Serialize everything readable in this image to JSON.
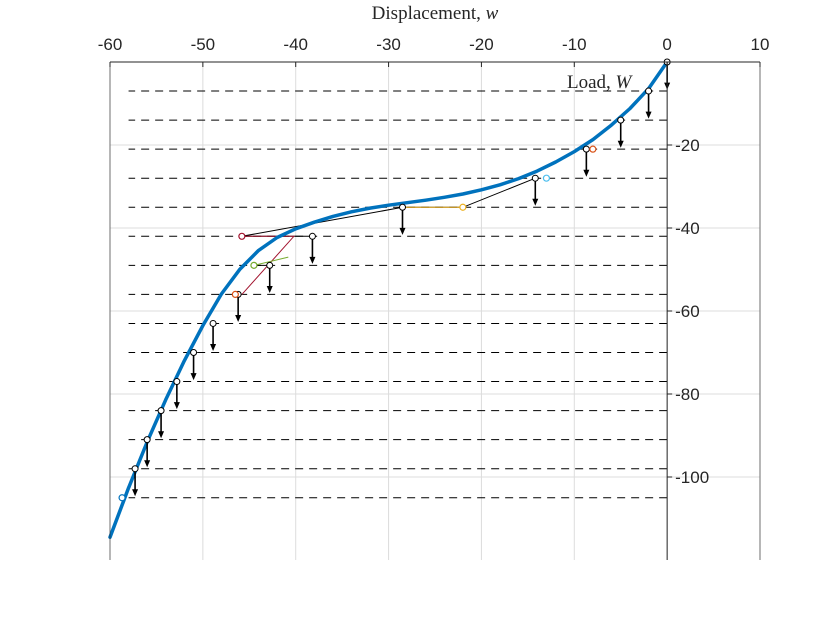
{
  "chart_data": {
    "type": "line",
    "title": "",
    "xlabel": "Displacement,",
    "xlabel_var": "w",
    "ylabel": "Load,",
    "ylabel_var": "W",
    "xlim": [
      -60,
      10
    ],
    "ylim": [
      -120,
      0
    ],
    "x_ticks": [
      -60,
      -50,
      -40,
      -30,
      -20,
      -10,
      0,
      10
    ],
    "y_ticks": [
      -20,
      -40,
      -60,
      -80,
      -100
    ],
    "x_axis_location": "top",
    "y_axis_location": "origin",
    "grid": true,
    "equilibrium_curve": {
      "color": "#0072BD",
      "x": [
        -60,
        -58,
        -56,
        -54,
        -52,
        -50,
        -48,
        -46,
        -44,
        -42,
        -40,
        -38,
        -36,
        -34,
        -32,
        -30,
        -28,
        -26,
        -24,
        -22,
        -20,
        -18,
        -16,
        -14,
        -12,
        -10,
        -8,
        -6,
        -4,
        -2,
        0
      ],
      "y": [
        -114.5,
        -102.6,
        -91.6,
        -81.4,
        -72.0,
        -63.5,
        -55.9,
        -49.9,
        -45.4,
        -42.3,
        -40.2,
        -38.6,
        -37.2,
        -36.1,
        -35.2,
        -34.5,
        -33.9,
        -33.3,
        -32.6,
        -31.8,
        -30.8,
        -29.6,
        -28.1,
        -26.3,
        -24.1,
        -21.6,
        -18.7,
        -15.2,
        -11.2,
        -6.4,
        0
      ]
    },
    "load_levels": [
      -7,
      -14,
      -21,
      -28,
      -35,
      -42,
      -49,
      -56,
      -63,
      -70,
      -77,
      -84,
      -91,
      -98,
      -105
    ],
    "equilibrium_points": [
      {
        "x": -2.0,
        "y": -7
      },
      {
        "x": -5.0,
        "y": -14
      },
      {
        "x": -8.7,
        "y": -21
      },
      {
        "x": -14.2,
        "y": -28
      },
      {
        "x": -28.5,
        "y": -35
      },
      {
        "x": -38.2,
        "y": -42
      },
      {
        "x": -42.8,
        "y": -49
      },
      {
        "x": -46.2,
        "y": -56
      },
      {
        "x": -48.9,
        "y": -63
      },
      {
        "x": -51.0,
        "y": -70
      },
      {
        "x": -52.8,
        "y": -77
      },
      {
        "x": -54.5,
        "y": -84
      },
      {
        "x": -56.0,
        "y": -91
      },
      {
        "x": -57.3,
        "y": -98
      }
    ],
    "predictor_points": [
      {
        "x": -8.0,
        "y": -21,
        "color": "#D95319"
      },
      {
        "x": -13.0,
        "y": -28,
        "color": "#4DBEEE"
      },
      {
        "x": -22.0,
        "y": -35,
        "color": "#EDB120"
      },
      {
        "x": -45.8,
        "y": -42,
        "color": "#A2142F"
      },
      {
        "x": -44.5,
        "y": -49,
        "color": "#77AC30"
      },
      {
        "x": -46.5,
        "y": -56,
        "color": "#D95319"
      },
      {
        "x": -58.7,
        "y": -105,
        "color": "#0072BD"
      }
    ],
    "predictor_paths": [
      {
        "color": "#000000",
        "points": [
          [
            -14.2,
            -28
          ],
          [
            -22.0,
            -35
          ],
          [
            -28.5,
            -35
          ]
        ]
      },
      {
        "color": "#EDB120",
        "points": [
          [
            -22.0,
            -35
          ],
          [
            -28.5,
            -35
          ]
        ]
      },
      {
        "color": "#000000",
        "points": [
          [
            -28.5,
            -35
          ],
          [
            -45.8,
            -42
          ],
          [
            -38.2,
            -42
          ]
        ]
      },
      {
        "color": "#A2142F",
        "points": [
          [
            -45.8,
            -42
          ],
          [
            -40.2,
            -42
          ],
          [
            -45.8,
            -56
          ]
        ]
      },
      {
        "color": "#000000",
        "points": [
          [
            -44.5,
            -49
          ],
          [
            -42.8,
            -49
          ]
        ]
      },
      {
        "color": "#77AC30",
        "points": [
          [
            -44.5,
            -49
          ],
          [
            -40.8,
            -47
          ]
        ]
      }
    ]
  }
}
